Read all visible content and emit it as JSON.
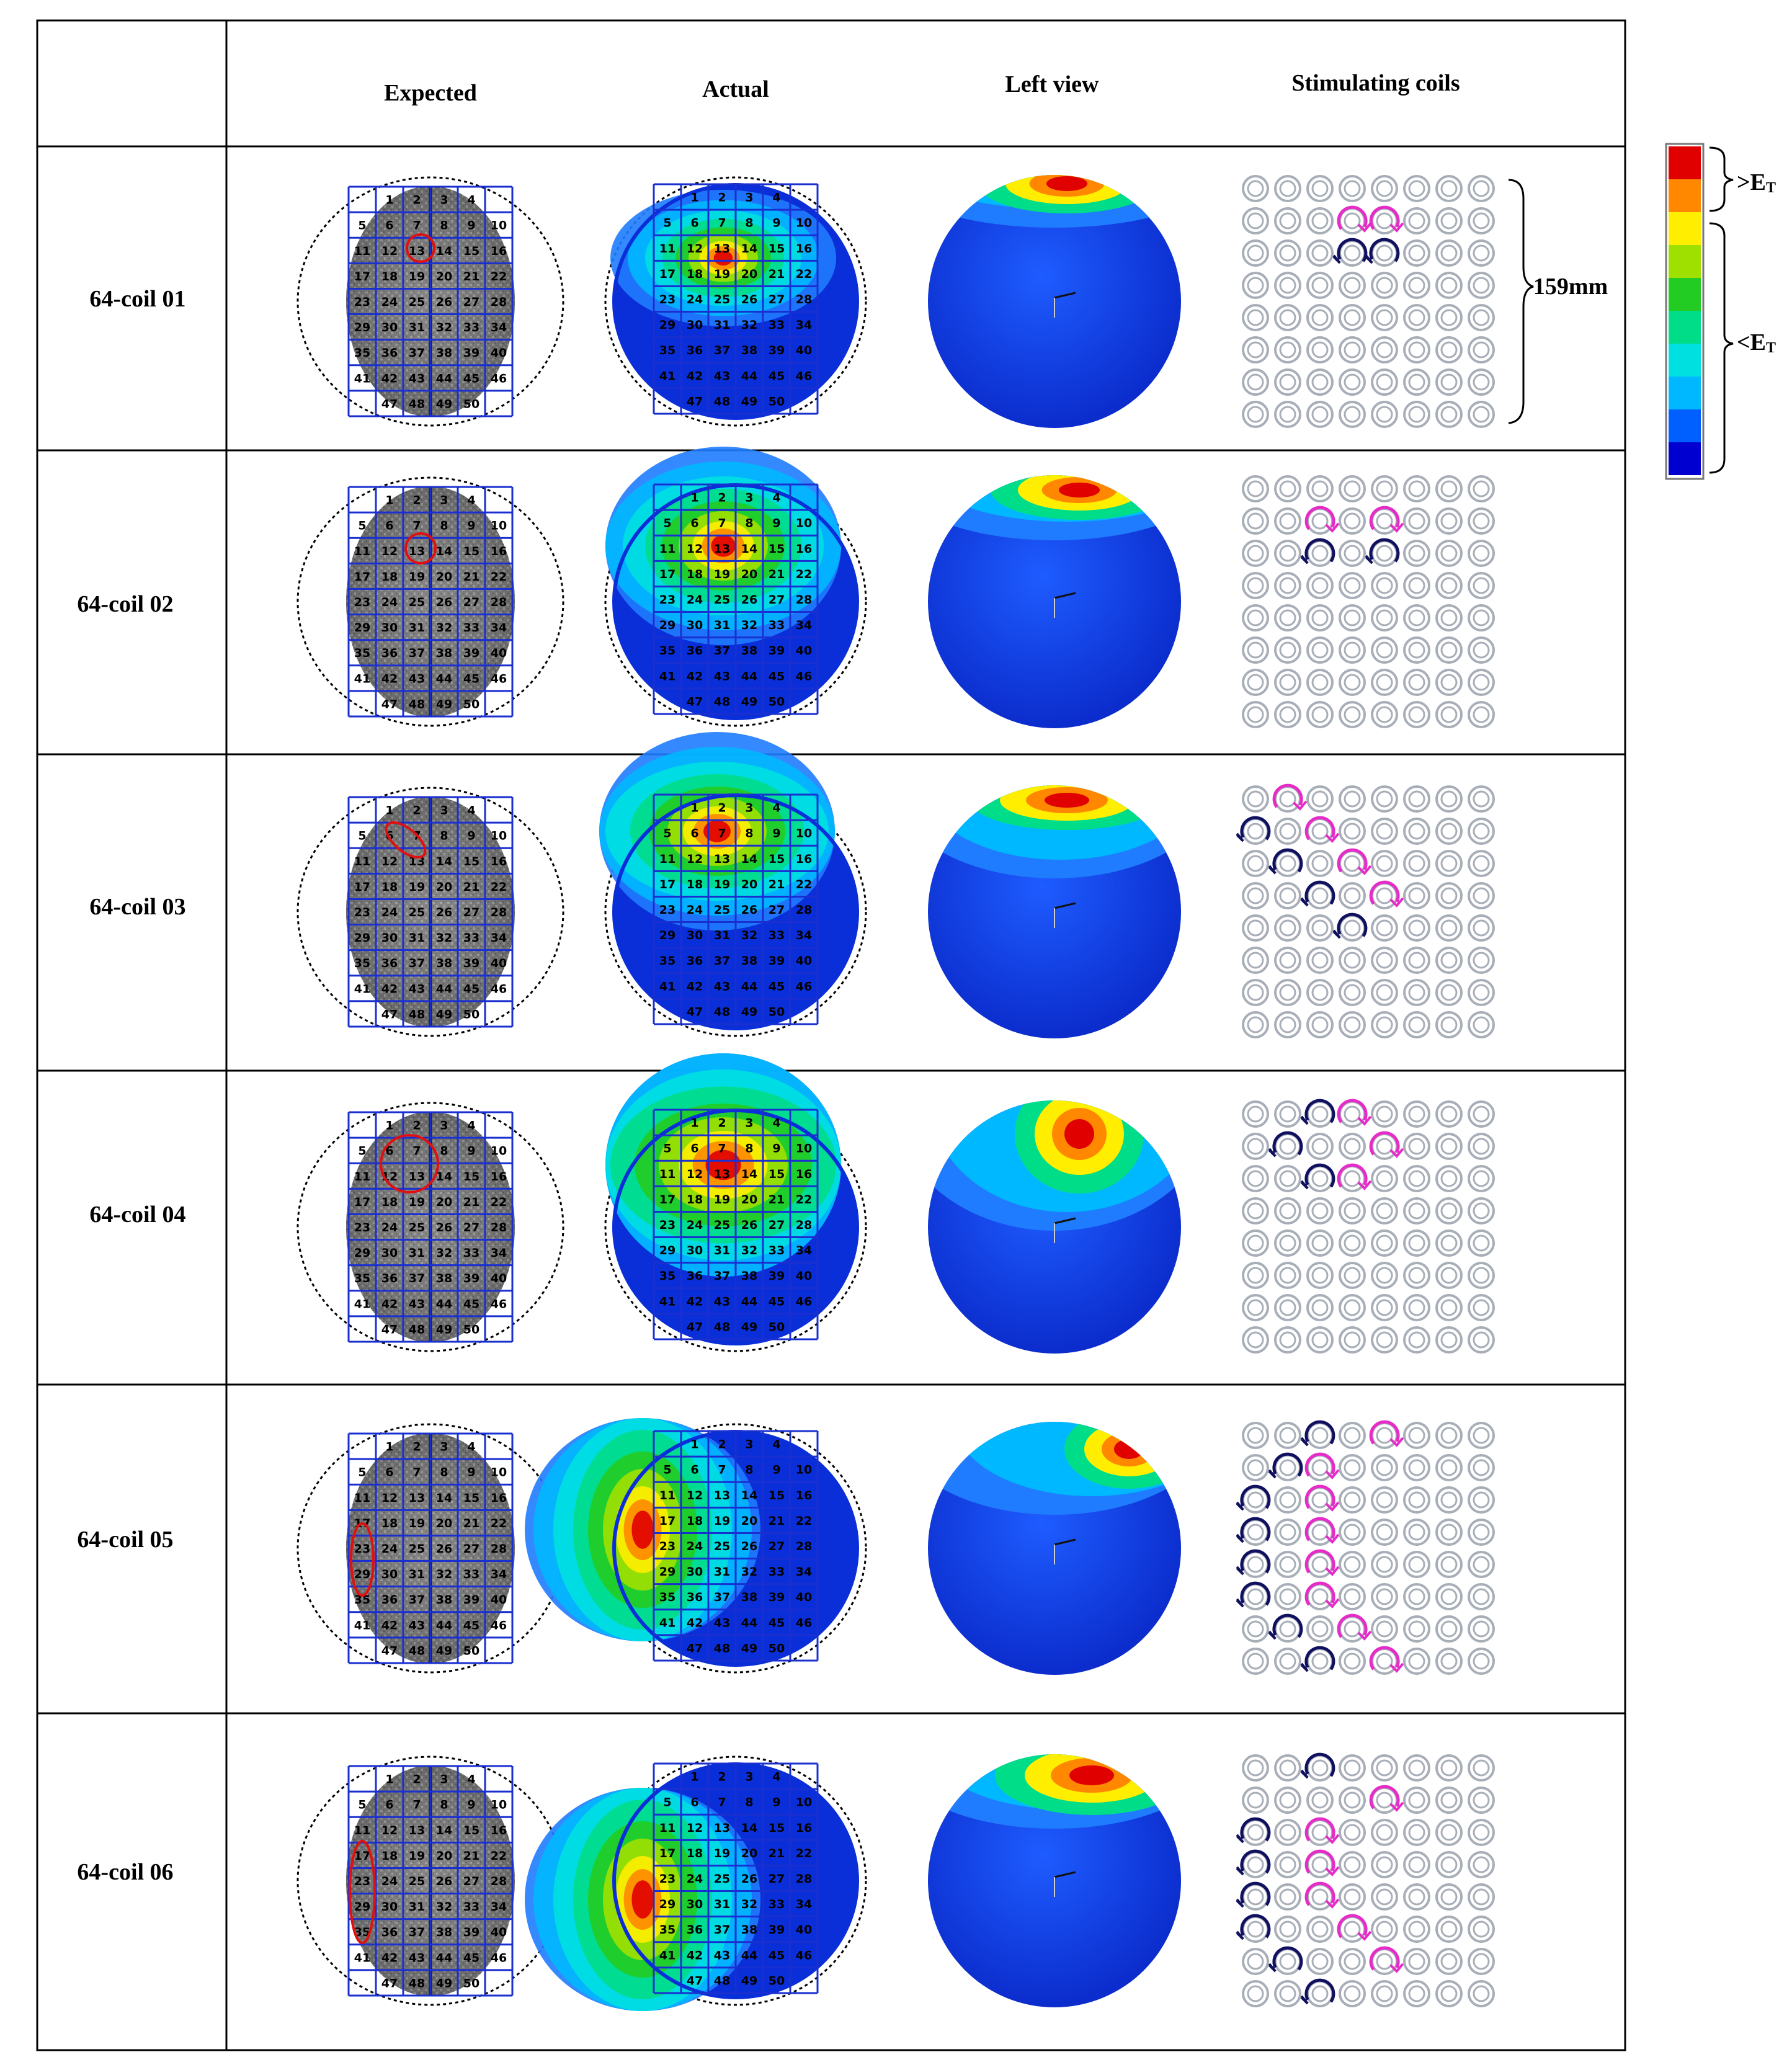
{
  "headers": {
    "col_expected": "Expected",
    "col_actual": "Actual",
    "col_left_view": "Left view",
    "col_stimulating_coils": "Stimulating coils"
  },
  "rows": [
    {
      "label": "64-coil 01",
      "coil": "01"
    },
    {
      "label": "64-coil 02",
      "coil": "02"
    },
    {
      "label": "64-coil 03",
      "coil": "03"
    },
    {
      "label": "64-coil 04",
      "coil": "04"
    },
    {
      "label": "64-coil 05",
      "coil": "05"
    },
    {
      "label": "64-coil 06",
      "coil": "06"
    }
  ],
  "grid_cells": [
    [
      "1",
      "2",
      "3",
      "4"
    ],
    [
      "5",
      "6",
      "7",
      "8",
      "9",
      "10"
    ],
    [
      "11",
      "12",
      "13",
      "14",
      "15",
      "16"
    ],
    [
      "17",
      "18",
      "19",
      "20",
      "21",
      "22"
    ],
    [
      "23",
      "24",
      "25",
      "26",
      "27",
      "28"
    ],
    [
      "29",
      "30",
      "31",
      "32",
      "33",
      "34"
    ],
    [
      "35",
      "36",
      "37",
      "38",
      "39",
      "40"
    ],
    [
      "41",
      "42",
      "43",
      "44",
      "45",
      "46"
    ],
    [
      "47",
      "48",
      "49",
      "50"
    ]
  ],
  "dimension_label": "159mm",
  "colorbar": {
    "above_label": ">E",
    "below_label": "<E",
    "subscript": "T",
    "colors": [
      "#e00000",
      "#ff8800",
      "#ffee00",
      "#a0e000",
      "#22cc22",
      "#00dd88",
      "#00e0e0",
      "#00b8ff",
      "#0060ff",
      "#0000d0"
    ]
  },
  "colors": {
    "clockwise_arrow": "#e62bc8",
    "counterclockwise_arrow": "#101060",
    "grid_line": "#1a2fd0",
    "coil_ring": "#a8aeb8"
  }
}
